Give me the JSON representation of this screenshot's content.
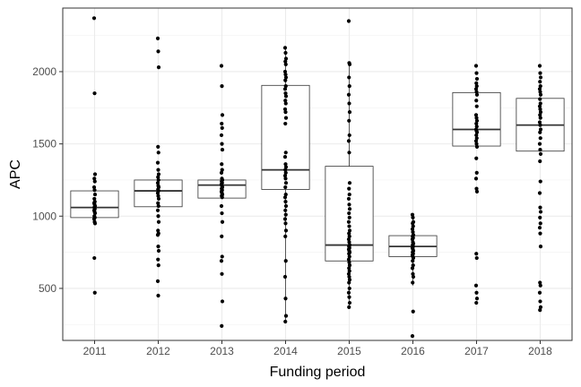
{
  "chart_data": {
    "type": "boxplot",
    "title": "",
    "xlabel": "Funding period",
    "ylabel": "APC",
    "ylim": [
      140,
      2440
    ],
    "yticks": [
      500,
      1000,
      1500,
      2000
    ],
    "grid": true,
    "theme": "bw",
    "categories": [
      "2011",
      "2012",
      "2013",
      "2014",
      "2015",
      "2016",
      "2017",
      "2018"
    ],
    "boxes": [
      {
        "category": "2011",
        "q1": 990,
        "median": 1060,
        "q3": 1175,
        "whisker_low": 990,
        "whisker_high": 1175
      },
      {
        "category": "2012",
        "q1": 1065,
        "median": 1175,
        "q3": 1250,
        "whisker_low": 1065,
        "whisker_high": 1250
      },
      {
        "category": "2013",
        "q1": 1125,
        "median": 1215,
        "q3": 1250,
        "whisker_low": 1125,
        "whisker_high": 1250
      },
      {
        "category": "2014",
        "q1": 1185,
        "median": 1320,
        "q3": 1905,
        "whisker_low": 270,
        "whisker_high": 2165
      },
      {
        "category": "2015",
        "q1": 690,
        "median": 800,
        "q3": 1345,
        "whisker_low": 360,
        "whisker_high": 2060
      },
      {
        "category": "2016",
        "q1": 720,
        "median": 790,
        "q3": 865,
        "whisker_low": 520,
        "whisker_high": 1010
      },
      {
        "category": "2017",
        "q1": 1485,
        "median": 1600,
        "q3": 1855,
        "whisker_low": 1485,
        "whisker_high": 1855
      },
      {
        "category": "2018",
        "q1": 1450,
        "median": 1630,
        "q3": 1815,
        "whisker_low": 1450,
        "whisker_high": 1815
      }
    ],
    "points": [
      {
        "category": "2011",
        "values": [
          2370,
          1850,
          1290,
          1260,
          1240,
          1200,
          1180,
          1150,
          1120,
          1100,
          1090,
          1080,
          1070,
          1060,
          1050,
          1040,
          1030,
          1020,
          1000,
          990,
          980,
          960,
          950,
          710,
          470
        ]
      },
      {
        "category": "2012",
        "values": [
          2230,
          2140,
          2030,
          1480,
          1440,
          1370,
          1320,
          1290,
          1270,
          1250,
          1230,
          1210,
          1200,
          1185,
          1175,
          1160,
          1140,
          1120,
          1090,
          1070,
          1040,
          1000,
          960,
          900,
          880,
          870,
          790,
          760,
          700,
          660,
          550,
          450
        ]
      },
      {
        "category": "2013",
        "values": [
          2040,
          1900,
          1700,
          1640,
          1610,
          1560,
          1500,
          1460,
          1360,
          1320,
          1300,
          1260,
          1250,
          1240,
          1230,
          1220,
          1210,
          1200,
          1190,
          1180,
          1170,
          1160,
          1150,
          1140,
          1130,
          1070,
          1020,
          960,
          860,
          720,
          690,
          600,
          410,
          240
        ]
      },
      {
        "category": "2014",
        "values": [
          2165,
          2130,
          2090,
          2070,
          2050,
          2000,
          1980,
          1960,
          1940,
          1900,
          1880,
          1850,
          1830,
          1800,
          1780,
          1740,
          1720,
          1680,
          1640,
          1440,
          1410,
          1360,
          1340,
          1320,
          1300,
          1280,
          1260,
          1230,
          1200,
          1150,
          1130,
          1100,
          1070,
          1040,
          1010,
          980,
          950,
          900,
          860,
          690,
          580,
          430,
          310,
          270
        ]
      },
      {
        "category": "2015",
        "values": [
          2350,
          2060,
          2050,
          1960,
          1900,
          1840,
          1780,
          1720,
          1660,
          1560,
          1520,
          1440,
          1230,
          1190,
          1150,
          1120,
          1080,
          1050,
          1020,
          990,
          960,
          930,
          900,
          880,
          860,
          840,
          820,
          800,
          790,
          780,
          770,
          760,
          750,
          740,
          720,
          700,
          680,
          660,
          640,
          620,
          600,
          580,
          560,
          540,
          500,
          470,
          440,
          400,
          370
        ]
      },
      {
        "category": "2016",
        "values": [
          1010,
          990,
          960,
          950,
          930,
          910,
          890,
          870,
          860,
          850,
          840,
          820,
          810,
          800,
          790,
          780,
          770,
          760,
          750,
          740,
          730,
          720,
          710,
          690,
          660,
          640,
          600,
          580,
          540,
          340,
          170
        ]
      },
      {
        "category": "2017",
        "values": [
          2040,
          1990,
          1950,
          1920,
          1900,
          1880,
          1860,
          1840,
          1800,
          1760,
          1700,
          1680,
          1660,
          1640,
          1620,
          1600,
          1590,
          1580,
          1560,
          1540,
          1520,
          1500,
          1480,
          1400,
          1300,
          1260,
          1190,
          1170,
          740,
          710,
          520,
          470,
          430,
          400
        ]
      },
      {
        "category": "2018",
        "values": [
          2040,
          1990,
          1960,
          1930,
          1900,
          1880,
          1860,
          1840,
          1810,
          1780,
          1760,
          1740,
          1720,
          1700,
          1680,
          1650,
          1630,
          1600,
          1580,
          1540,
          1500,
          1460,
          1430,
          1380,
          1240,
          1160,
          1060,
          1030,
          990,
          950,
          920,
          880,
          790,
          540,
          520,
          470,
          410,
          370,
          350
        ]
      }
    ]
  }
}
